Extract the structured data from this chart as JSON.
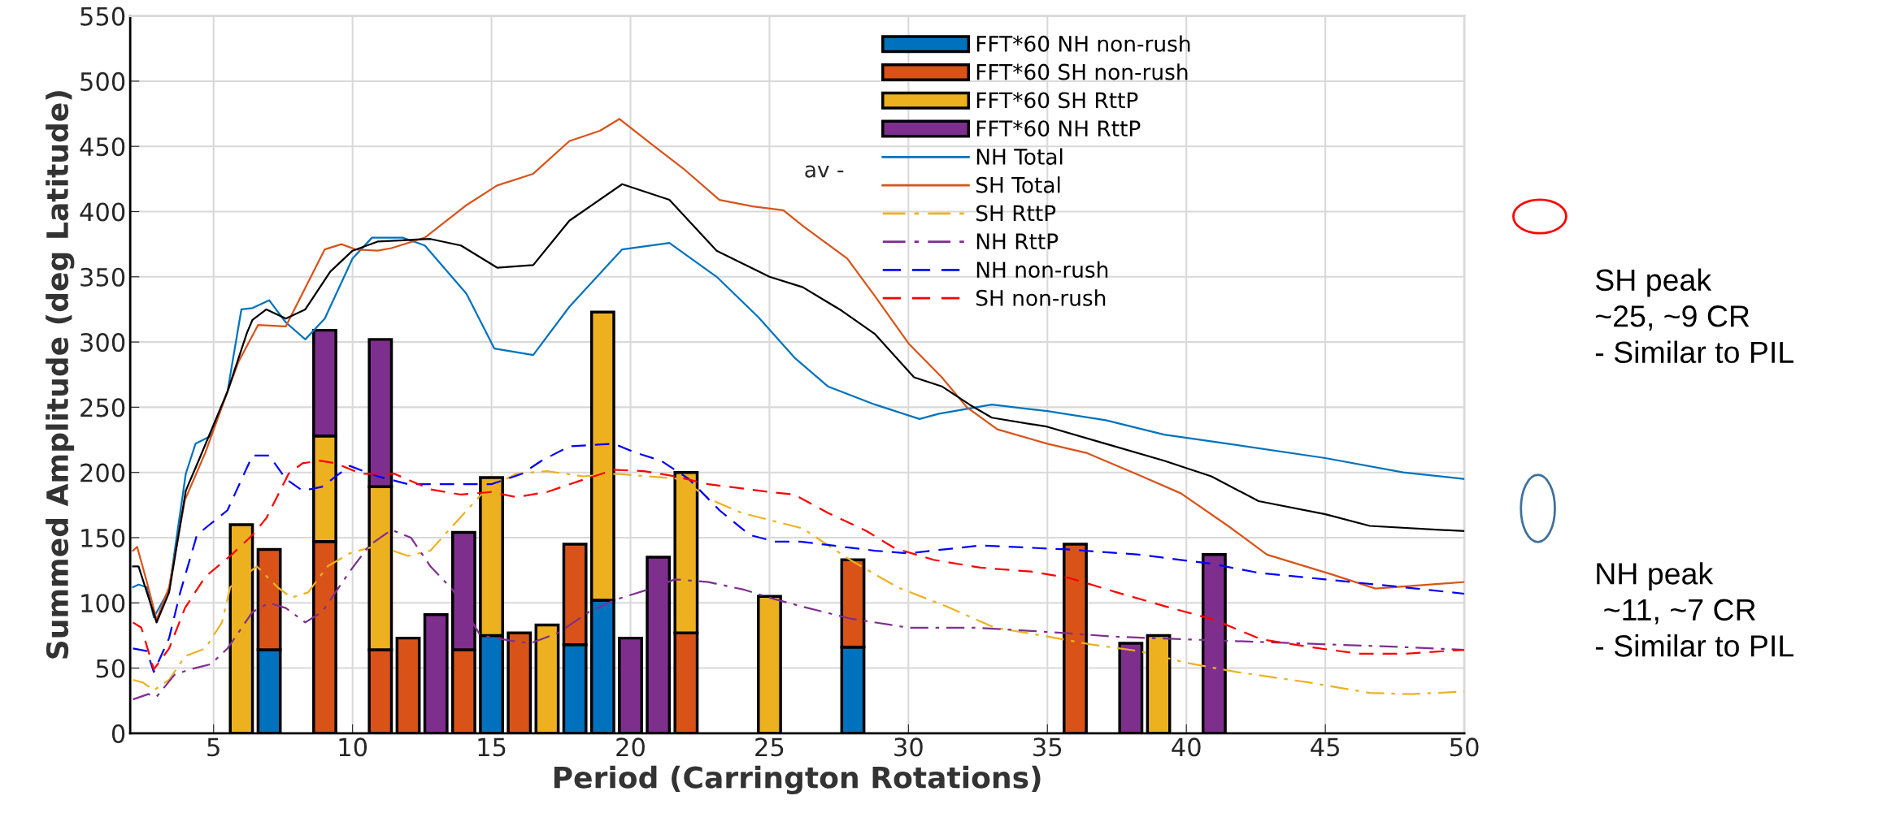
{
  "chart_data": {
    "type": "bar",
    "stacked": true,
    "xlabel": "Period (Carrington Rotations)",
    "ylabel": "Summed Amplitude (deg Latitude)",
    "x": [
      6,
      7,
      9,
      11,
      12,
      13,
      14,
      15,
      16,
      17,
      18,
      19,
      20,
      21,
      22,
      25,
      28,
      36,
      38,
      39,
      41
    ],
    "xlim": [
      2,
      50
    ],
    "xticks": [
      5,
      10,
      15,
      20,
      25,
      30,
      35,
      40,
      45,
      50
    ],
    "ylim": [
      0,
      550
    ],
    "yticks": [
      0,
      50,
      100,
      150,
      200,
      250,
      300,
      350,
      400,
      450,
      500,
      550
    ],
    "grid": true,
    "legend": "top right",
    "series": [
      {
        "name": "FFT*60 NH non-rush",
        "color": "#0072bd",
        "values": [
          null,
          64,
          null,
          null,
          null,
          null,
          null,
          75,
          null,
          null,
          68,
          102,
          null,
          null,
          null,
          null,
          66,
          null,
          null,
          null,
          null
        ]
      },
      {
        "name": "FFT*60 SH non-rush",
        "color": "#d95319",
        "values": [
          null,
          77,
          147,
          64,
          73,
          null,
          64,
          null,
          77,
          null,
          77,
          null,
          null,
          null,
          77,
          null,
          67,
          145,
          null,
          null,
          null
        ]
      },
      {
        "name": "FFT*60 SH RttP",
        "color": "#edb120",
        "values": [
          160,
          null,
          81,
          125,
          null,
          null,
          null,
          121,
          null,
          83,
          null,
          221,
          null,
          null,
          123,
          105,
          null,
          null,
          null,
          75,
          null
        ]
      },
      {
        "name": "FFT*60 NH RttP",
        "color": "#7e2f8e",
        "values": [
          null,
          null,
          81,
          113,
          null,
          91,
          90,
          null,
          null,
          null,
          null,
          null,
          73,
          135,
          null,
          null,
          null,
          null,
          69,
          null,
          137
        ]
      },
      {
        "name": "NH Total",
        "type": "line",
        "color": "#0072bd",
        "line_style": "solid",
        "x": [
          2.1,
          2.3,
          2.6,
          2.85,
          3.4,
          4.0,
          4.35,
          4.9,
          5.5,
          6.0,
          6.4,
          7.0,
          7.6,
          8.3,
          9.0,
          10.0,
          10.7,
          11.8,
          12.6,
          14.1,
          15.1,
          16.5,
          17.8,
          19.7,
          21.4,
          23.1,
          24.6,
          25.9,
          27.1,
          28.8,
          30.4,
          31.1,
          33.0,
          35.0,
          37.1,
          39.2,
          41.5,
          45.0,
          47.8,
          50.0
        ],
        "values": [
          112,
          114,
          112,
          89,
          110,
          199,
          222,
          228,
          262,
          325,
          326,
          332,
          315,
          302,
          318,
          364,
          380,
          380,
          374,
          337,
          295,
          290,
          327,
          371,
          376,
          350,
          319,
          288,
          266,
          252,
          241,
          245,
          252,
          247,
          240,
          229,
          222,
          211,
          200,
          195
        ]
      },
      {
        "name": "SH Total",
        "type": "line",
        "color": "#d95319",
        "line_style": "solid",
        "x": [
          2.1,
          2.25,
          2.6,
          2.95,
          3.4,
          3.97,
          4.7,
          5.5,
          5.9,
          6.6,
          7.6,
          9.0,
          9.6,
          10.1,
          10.9,
          11.4,
          12.6,
          14.1,
          15.2,
          16.5,
          17.8,
          18.9,
          19.6,
          20.8,
          21.9,
          23.2,
          24.4,
          25.5,
          26.2,
          27.8,
          28.8,
          30.0,
          31.2,
          32.1,
          33.2,
          35.0,
          36.4,
          38.4,
          39.8,
          41.5,
          42.9,
          45.2,
          46.8,
          48.1,
          50.0
        ],
        "values": [
          140,
          143,
          116,
          87,
          112,
          179,
          215,
          262,
          285,
          313,
          312,
          371,
          375,
          371,
          370,
          372,
          380,
          405,
          420,
          429,
          454,
          462,
          471,
          451,
          433,
          409,
          404,
          401,
          389,
          364,
          335,
          299,
          273,
          250,
          233,
          222,
          215,
          197,
          184,
          159,
          137,
          122,
          111,
          113,
          116
        ]
      },
      {
        "name": "SH RttP",
        "type": "line",
        "color": "#edb120",
        "line_style": "dashdot",
        "x": [
          2.1,
          2.45,
          2.85,
          3.4,
          3.97,
          4.7,
          5.3,
          5.6,
          6.55,
          7.3,
          7.8,
          8.4,
          9.1,
          9.9,
          10.9,
          12.0,
          12.8,
          13.6,
          14.8,
          15.9,
          17.0,
          18.3,
          19.5,
          20.6,
          21.8,
          22.9,
          24.0,
          25.1,
          26.2,
          27.9,
          29.6,
          31.4,
          33.1,
          34.8,
          36.6,
          38.3,
          40.0,
          41.8,
          44.4,
          46.6,
          48.1,
          50.0
        ],
        "values": [
          41,
          39,
          33,
          41,
          59,
          65,
          85,
          112,
          128,
          112,
          104,
          108,
          128,
          138,
          144,
          136,
          140,
          159,
          187,
          199,
          201,
          197,
          199,
          197,
          195,
          179,
          169,
          163,
          157,
          133,
          112,
          97,
          81,
          75,
          68,
          63,
          54,
          47,
          39,
          31,
          30,
          32
        ]
      },
      {
        "name": "NH RttP",
        "type": "line",
        "color": "#7e2f8e",
        "line_style": "dashdot",
        "x": [
          2.1,
          2.65,
          2.95,
          3.6,
          4.15,
          4.9,
          5.5,
          6.4,
          7.0,
          7.6,
          8.3,
          8.9,
          9.9,
          10.6,
          11.4,
          12.1,
          12.8,
          13.6,
          14.6,
          15.7,
          16.4,
          17.4,
          18.5,
          19.4,
          20.6,
          21.6,
          22.8,
          24.1,
          25.0,
          26.2,
          27.9,
          30.0,
          32.3,
          34.8,
          37.5,
          40.0,
          42.7,
          45.3,
          47.9,
          50.0
        ],
        "values": [
          26,
          30,
          28,
          45,
          49,
          53,
          65,
          93,
          100,
          96,
          85,
          93,
          124,
          144,
          156,
          150,
          128,
          110,
          75,
          71,
          69,
          77,
          93,
          102,
          110,
          118,
          116,
          110,
          104,
          97,
          88,
          81,
          81,
          78,
          74,
          72,
          70,
          68,
          66,
          64
        ]
      },
      {
        "name": "NH non-rush",
        "type": "line",
        "color": "#0000ff",
        "line_style": "dashed",
        "x": [
          2.1,
          2.6,
          2.85,
          3.4,
          3.8,
          4.4,
          4.8,
          5.5,
          6.4,
          7.0,
          7.6,
          8.2,
          8.9,
          9.9,
          10.9,
          12.0,
          13.9,
          15.0,
          16.1,
          16.8,
          17.8,
          19.4,
          20.2,
          21.1,
          22.1,
          23.2,
          24.3,
          25.2,
          26.1,
          28.8,
          30.0,
          32.6,
          35.7,
          38.3,
          40.9,
          42.6,
          45.0,
          47.8,
          50.0
        ],
        "values": [
          65,
          63,
          47,
          73,
          108,
          152,
          159,
          171,
          213,
          213,
          195,
          186,
          189,
          205,
          197,
          191,
          191,
          191,
          199,
          209,
          220,
          222,
          215,
          209,
          195,
          171,
          152,
          147,
          147,
          140,
          138,
          144,
          141,
          137,
          130,
          123,
          118,
          112,
          107
        ]
      },
      {
        "name": "SH non-rush",
        "type": "line",
        "color": "#ff0000",
        "line_style": "dashed",
        "x": [
          2.1,
          2.4,
          2.85,
          3.4,
          3.97,
          4.7,
          5.6,
          6.4,
          6.9,
          7.7,
          8.2,
          8.8,
          9.4,
          10.3,
          11.5,
          12.8,
          13.9,
          15.0,
          15.9,
          17.0,
          18.1,
          19.4,
          20.5,
          21.6,
          22.8,
          23.9,
          25.0,
          25.9,
          27.1,
          28.5,
          29.5,
          30.9,
          32.6,
          34.4,
          35.8,
          37.5,
          39.3,
          41.0,
          42.7,
          44.5,
          46.2,
          47.9,
          50.0
        ],
        "values": [
          85,
          81,
          49,
          65,
          96,
          120,
          136,
          152,
          165,
          199,
          207,
          209,
          207,
          199,
          199,
          187,
          183,
          185,
          181,
          185,
          193,
          202,
          201,
          197,
          191,
          188,
          185,
          183,
          169,
          155,
          142,
          133,
          127,
          124,
          119,
          108,
          97,
          87,
          72,
          66,
          61,
          61,
          64
        ]
      },
      {
        "type": "line",
        "color": "#000000",
        "line_style": "solid",
        "x": [
          2.1,
          2.3,
          2.95,
          3.4,
          4.0,
          4.5,
          5.5,
          6.2,
          6.4,
          6.9,
          7.6,
          8.3,
          9.2,
          10.0,
          10.9,
          11.8,
          12.8,
          13.9,
          15.2,
          16.5,
          17.8,
          19.7,
          21.4,
          23.1,
          25.0,
          26.2,
          27.6,
          28.8,
          30.2,
          31.2,
          32.2,
          33.0,
          35.0,
          37.1,
          39.2,
          40.9,
          42.6,
          45.0,
          46.6,
          50.0
        ],
        "values": [
          128,
          128,
          85,
          108,
          186,
          211,
          262,
          307,
          317,
          325,
          318,
          325,
          354,
          370,
          377,
          378,
          379,
          374,
          357,
          359,
          393,
          421,
          409,
          370,
          350,
          342,
          324,
          306,
          273,
          266,
          252,
          242,
          235,
          222,
          209,
          197,
          178,
          168,
          159,
          155
        ]
      }
    ],
    "annotations": [
      "av -",
      "SH peak\n~25, ~9 CR\n- Similar to PIL",
      "NH peak\n ~11, ~7 CR\n- Similar to PIL"
    ]
  }
}
